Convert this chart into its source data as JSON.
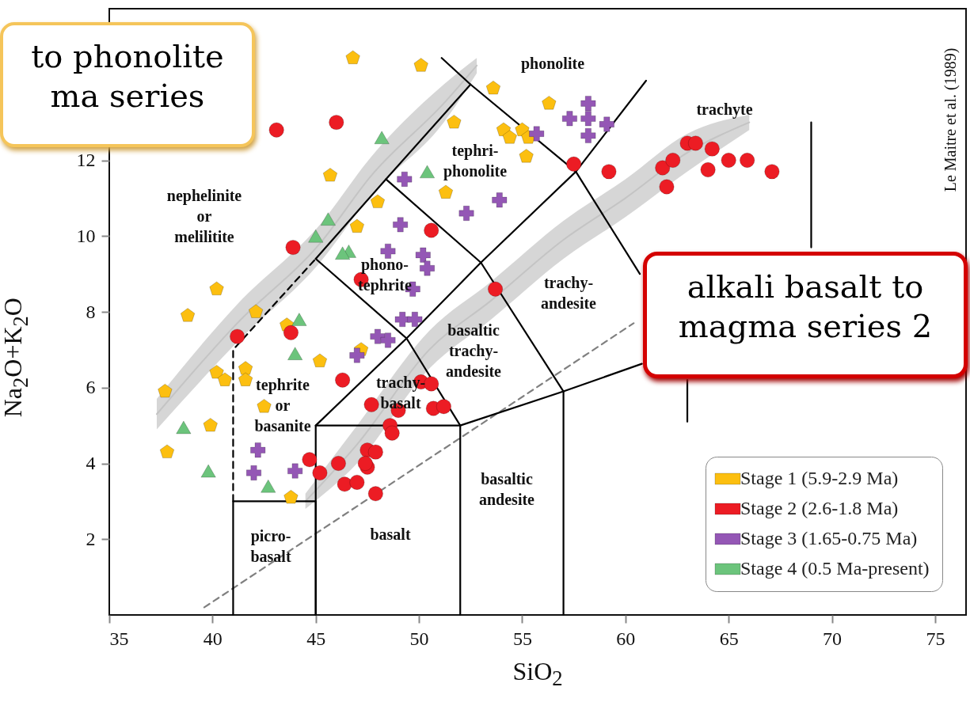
{
  "chart_data": {
    "type": "scatter",
    "xlabel": "SiO$_{2}$",
    "ylabel": "Na$_{2}$O+K$_{2}$O",
    "y2label": "Le Maitre et al. (1989)",
    "xlim": [
      35,
      76.5
    ],
    "ylim": [
      0,
      16
    ],
    "xticks": [
      35,
      40,
      45,
      50,
      55,
      60,
      65,
      70,
      75
    ],
    "yticks": [
      2,
      4,
      6,
      8,
      10,
      12
    ],
    "grid": false,
    "legend": "bottom right",
    "series": [
      {
        "type": "line",
        "color": "#c4c4c4",
        "x": [
          37.3,
          41.2,
          45.2,
          47.7,
          51.2,
          52.8
        ],
        "values": [
          5.3,
          7.7,
          9.8,
          11.6,
          13.5,
          14.5
        ],
        "lower": [
          4.9,
          7.2,
          9.3,
          11.1,
          13.0,
          14.3
        ],
        "upper": [
          5.7,
          8.2,
          10.3,
          12.1,
          14.0,
          14.7
        ]
      },
      {
        "type": "line",
        "color": "#c4c4c4",
        "x": [
          44.5,
          47,
          50.5,
          53.5,
          57,
          60,
          63,
          66
        ],
        "values": [
          3.0,
          4.5,
          7.0,
          8.3,
          9.9,
          11.0,
          12.2,
          13.0
        ],
        "lower": [
          2.8,
          4.0,
          6.5,
          7.8,
          9.4,
          10.5,
          11.7,
          12.8
        ],
        "upper": [
          3.2,
          5.0,
          7.5,
          8.8,
          10.4,
          11.5,
          12.7,
          13.2
        ]
      },
      {
        "type": "line",
        "color": "#808080",
        "line_style": "dashed",
        "x": [
          39.6,
          60.4
        ],
        "values": [
          0.2,
          7.7
        ]
      },
      {
        "type": "line",
        "color": "#000000",
        "line_style": "dashed",
        "x": [
          41,
          41,
          45
        ],
        "values": [
          3,
          7,
          9.4
        ]
      },
      {
        "type": "line",
        "color": "#000000",
        "x": [
          41,
          41,
          45,
          45
        ],
        "values": [
          0,
          3,
          3,
          0
        ]
      },
      {
        "type": "line",
        "color": "#000000",
        "x": [
          45,
          45,
          52,
          52
        ],
        "values": [
          0,
          5,
          5,
          0
        ]
      },
      {
        "type": "line",
        "color": "#000000",
        "x": [
          57,
          57,
          60.8
        ],
        "values": [
          0,
          5.9,
          6.63
        ]
      },
      {
        "type": "line",
        "color": "#000000",
        "x": [
          63,
          63
        ],
        "values": [
          5.1,
          6.2
        ]
      },
      {
        "type": "line",
        "color": "#000000",
        "x": [
          45,
          48.4,
          52.5
        ],
        "values": [
          9.4,
          11.5,
          14
        ]
      },
      {
        "type": "line",
        "color": "#000000",
        "x": [
          51.1,
          52.5,
          57.6,
          60.7
        ],
        "values": [
          14.7,
          14,
          11.7,
          9.0
        ]
      },
      {
        "type": "line",
        "color": "#000000",
        "x": [
          57.6,
          61
        ],
        "values": [
          11.7,
          14.1
        ]
      },
      {
        "type": "line",
        "color": "#000000",
        "x": [
          45,
          49.4,
          52,
          57
        ],
        "values": [
          5,
          7.3,
          5,
          5.9
        ]
      },
      {
        "type": "line",
        "color": "#000000",
        "x": [
          45,
          49.4,
          53,
          57.6
        ],
        "values": [
          9.4,
          7.3,
          9.3,
          11.7
        ]
      },
      {
        "type": "line",
        "color": "#000000",
        "x": [
          48.4,
          53,
          57
        ],
        "values": [
          11.5,
          9.3,
          5.9
        ]
      },
      {
        "type": "line",
        "color": "#000000",
        "x": [
          69,
          69
        ],
        "values": [
          13,
          9.7
        ]
      },
      {
        "name": "Stage 1 (5.9-2.9 Ma)",
        "color": "#fcbf10",
        "x": [
          37.7,
          37.8,
          39.9,
          40.2,
          40.2,
          40.6,
          41.6,
          42.5,
          43.8,
          42.1,
          45.7,
          48.0,
          47.0,
          43.6,
          53.6,
          56.3,
          51.7,
          54.1,
          54.4,
          55.0,
          55.3,
          55.2,
          51.3,
          46.8,
          50.1,
          38.8,
          45.2,
          47.2,
          41.6
        ],
        "values": [
          5.9,
          4.3,
          5.0,
          8.6,
          6.4,
          6.2,
          6.5,
          5.5,
          3.1,
          8.0,
          11.6,
          10.9,
          10.25,
          7.65,
          13.9,
          13.5,
          13.0,
          12.8,
          12.6,
          12.8,
          12.6,
          12.1,
          11.15,
          14.7,
          14.5,
          7.9,
          6.7,
          7.0,
          6.2
        ]
      },
      {
        "name": "Stage 2 (2.6-1.8 Ma)",
        "color": "#ec1c24",
        "marker": "circle",
        "x": [
          46.0,
          43.9,
          41.2,
          43.8,
          46.3,
          47.7,
          49.0,
          48.6,
          48.7,
          45.2,
          46.1,
          46.4,
          47.0,
          47.5,
          47.9,
          47.5,
          50.1,
          50.6,
          50.7,
          51.2,
          53.7,
          57.5,
          59.2,
          61.8,
          62.3,
          62.0,
          63.0,
          63.4,
          64.2,
          64.0,
          65.0,
          65.9,
          67.1,
          43.1,
          50.6,
          47.2,
          44.7,
          47.9,
          47.4
        ],
        "values": [
          13.0,
          9.7,
          7.35,
          7.45,
          6.2,
          5.55,
          5.4,
          5.0,
          4.8,
          3.75,
          4.0,
          3.45,
          3.5,
          4.35,
          4.3,
          3.9,
          6.15,
          6.1,
          5.45,
          5.5,
          8.6,
          11.9,
          11.7,
          11.8,
          12.0,
          11.3,
          12.45,
          12.45,
          12.3,
          11.75,
          12.0,
          12.0,
          11.7,
          12.8,
          10.15,
          8.85,
          4.1,
          3.2,
          4.0
        ]
      },
      {
        "name": "Stage 3 (1.65-0.75 Ma)",
        "color": "#9457b5",
        "marker": "cross",
        "x": [
          49.3,
          52.3,
          53.9,
          49.1,
          48.5,
          50.2,
          50.4,
          49.7,
          49.2,
          49.8,
          55.7,
          57.3,
          58.2,
          58.2,
          59.1,
          58.2,
          42.2,
          42.0,
          47.0,
          48.0,
          48.5,
          44.0
        ],
        "values": [
          11.5,
          10.6,
          10.95,
          10.3,
          9.6,
          9.5,
          9.15,
          8.6,
          7.8,
          7.8,
          12.7,
          13.1,
          13.5,
          13.1,
          12.95,
          12.65,
          4.35,
          3.75,
          6.85,
          7.35,
          7.25,
          3.8
        ]
      },
      {
        "name": "Stage 4 (0.5 Ma-present)",
        "color": "#6cc47c",
        "marker": "triangle",
        "x": [
          38.6,
          39.8,
          42.7,
          44.0,
          44.2,
          45.0,
          45.6,
          46.6,
          46.3,
          48.2,
          50.4
        ],
        "values": [
          4.95,
          3.8,
          3.4,
          6.9,
          7.8,
          10.0,
          10.45,
          9.6,
          9.55,
          12.6,
          11.7
        ]
      }
    ],
    "annotations": [
      "to phonolite\nma series",
      "alkali basalt to\nmagma series 2",
      "nephelinite\nor\nmelilitite",
      "phonolite",
      "trachyte",
      "tephri-\nphonolite",
      "phono-\ntephrite",
      "trachy-\nandesite",
      "basaltic\ntrachy-\nandesite",
      "trachy-\nbasalt",
      "tephrite\nor\nbasanite",
      "picro-\nbasalt",
      "basalt",
      "basaltic\nandesite"
    ]
  }
}
